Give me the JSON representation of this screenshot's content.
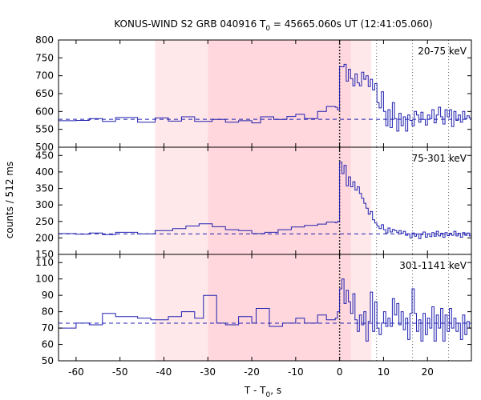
{
  "chart_data": {
    "type": "line",
    "title": {
      "prefix": "KONUS-WIND S2 GRB 040916 T",
      "sub": "0",
      "suffix": " = 45665.060s UT (12:41:05.060)"
    },
    "xlabel": {
      "prefix": "T - T",
      "sub": "0",
      "suffix": ", s"
    },
    "ylabel": "counts / 512 ms",
    "xlim": [
      -64,
      30
    ],
    "xticks": [
      -60,
      -50,
      -40,
      -30,
      -20,
      -10,
      0,
      10,
      20
    ],
    "shaded_regions": [
      {
        "x0": -42,
        "x1": -30,
        "color": "#ffe8ea"
      },
      {
        "x0": -30,
        "x1": 2.6,
        "color": "#ffd7dc"
      },
      {
        "x0": 2.6,
        "x1": 7.2,
        "color": "#ffe8ea"
      }
    ],
    "vlines": [
      {
        "x": 0,
        "style": "dotted-bold"
      },
      {
        "x": 8.4,
        "style": "dotted"
      },
      {
        "x": 16.6,
        "style": "dotted"
      },
      {
        "x": 24.8,
        "style": "dotted"
      }
    ],
    "line_color": "#2020b0",
    "panels": [
      {
        "label": "20-75 keV",
        "ylim": [
          500,
          800
        ],
        "yticks": [
          500,
          550,
          600,
          650,
          700,
          750,
          800
        ],
        "background": 578,
        "steps": [
          [
            -64,
            574
          ],
          [
            -60,
            575
          ],
          [
            -57,
            580
          ],
          [
            -54,
            572
          ],
          [
            -51,
            583
          ],
          [
            -46,
            570
          ],
          [
            -42,
            582
          ],
          [
            -39,
            573
          ],
          [
            -36,
            585
          ],
          [
            -33,
            572
          ],
          [
            -29,
            578
          ],
          [
            -26,
            570
          ],
          [
            -23,
            574
          ],
          [
            -20,
            568
          ],
          [
            -18,
            585
          ],
          [
            -15,
            578
          ],
          [
            -12,
            586
          ],
          [
            -10,
            592
          ],
          [
            -8,
            580
          ],
          [
            -5,
            600
          ],
          [
            -3,
            614
          ],
          [
            -1,
            612
          ],
          [
            -0.5,
            605
          ],
          [
            0,
            725
          ],
          [
            1,
            732
          ],
          [
            1.5,
            685
          ],
          [
            2,
            718
          ],
          [
            2.5,
            692
          ],
          [
            3,
            672
          ],
          [
            3.5,
            705
          ],
          [
            4,
            680
          ],
          [
            4.5,
            672
          ],
          [
            5,
            710
          ],
          [
            5.5,
            690
          ],
          [
            6,
            700
          ],
          [
            6.5,
            670
          ],
          [
            7,
            690
          ],
          [
            7.5,
            660
          ],
          [
            8,
            678
          ],
          [
            8.5,
            625
          ],
          [
            9,
            610
          ],
          [
            9.5,
            655
          ],
          [
            10,
            600
          ],
          [
            10.5,
            560
          ],
          [
            11,
            605
          ],
          [
            11.5,
            555
          ],
          [
            12,
            625
          ],
          [
            12.5,
            580
          ],
          [
            13,
            545
          ],
          [
            13.5,
            595
          ],
          [
            14,
            560
          ],
          [
            14.5,
            585
          ],
          [
            15,
            545
          ],
          [
            15.5,
            590
          ],
          [
            16,
            575
          ],
          [
            16.5,
            560
          ],
          [
            17,
            600
          ],
          [
            17.5,
            590
          ],
          [
            18,
            570
          ],
          [
            18.5,
            598
          ],
          [
            19,
            578
          ],
          [
            19.5,
            562
          ],
          [
            20,
            590
          ],
          [
            20.5,
            580
          ],
          [
            21,
            605
          ],
          [
            21.5,
            568
          ],
          [
            22,
            590
          ],
          [
            22.5,
            612
          ],
          [
            23,
            585
          ],
          [
            23.5,
            565
          ],
          [
            24,
            605
          ],
          [
            24.5,
            585
          ],
          [
            25,
            605
          ],
          [
            25.5,
            558
          ],
          [
            26,
            600
          ],
          [
            26.5,
            575
          ],
          [
            27,
            590
          ],
          [
            27.5,
            570
          ],
          [
            28,
            600
          ],
          [
            28.5,
            580
          ],
          [
            29,
            588
          ],
          [
            29.5,
            582
          ]
        ]
      },
      {
        "label": "75-301 keV",
        "ylim": [
          150,
          475
        ],
        "yticks": [
          150,
          200,
          250,
          300,
          350,
          400,
          450
        ],
        "background": 212,
        "steps": [
          [
            -64,
            213
          ],
          [
            -60,
            211
          ],
          [
            -57,
            215
          ],
          [
            -54,
            210
          ],
          [
            -51,
            217
          ],
          [
            -46,
            212
          ],
          [
            -42,
            222
          ],
          [
            -38,
            228
          ],
          [
            -35,
            236
          ],
          [
            -32,
            243
          ],
          [
            -29,
            234
          ],
          [
            -26,
            225
          ],
          [
            -23,
            222
          ],
          [
            -20,
            213
          ],
          [
            -17,
            217
          ],
          [
            -14,
            225
          ],
          [
            -11,
            233
          ],
          [
            -8,
            238
          ],
          [
            -5,
            242
          ],
          [
            -3,
            248
          ],
          [
            -1,
            246
          ],
          [
            -0.5,
            250
          ],
          [
            0,
            430
          ],
          [
            0.5,
            395
          ],
          [
            1,
            420
          ],
          [
            1.5,
            358
          ],
          [
            2,
            385
          ],
          [
            2.5,
            355
          ],
          [
            3,
            370
          ],
          [
            3.5,
            345
          ],
          [
            4,
            355
          ],
          [
            4.5,
            335
          ],
          [
            5,
            320
          ],
          [
            5.5,
            305
          ],
          [
            6,
            290
          ],
          [
            6.5,
            272
          ],
          [
            7,
            280
          ],
          [
            7.5,
            255
          ],
          [
            8,
            245
          ],
          [
            8.5,
            236
          ],
          [
            9,
            228
          ],
          [
            9.5,
            240
          ],
          [
            10,
            225
          ],
          [
            10.5,
            215
          ],
          [
            11,
            230
          ],
          [
            11.5,
            218
          ],
          [
            12,
            226
          ],
          [
            12.5,
            222
          ],
          [
            13,
            216
          ],
          [
            13.5,
            222
          ],
          [
            14,
            214
          ],
          [
            14.5,
            220
          ],
          [
            15,
            208
          ],
          [
            15.5,
            212
          ],
          [
            16,
            200
          ],
          [
            16.5,
            215
          ],
          [
            17,
            205
          ],
          [
            17.5,
            212
          ],
          [
            18,
            198
          ],
          [
            18.5,
            210
          ],
          [
            19,
            218
          ],
          [
            19.5,
            202
          ],
          [
            20,
            212
          ],
          [
            20.5,
            204
          ],
          [
            21,
            216
          ],
          [
            21.5,
            205
          ],
          [
            22,
            220
          ],
          [
            22.5,
            206
          ],
          [
            23,
            214
          ],
          [
            23.5,
            202
          ],
          [
            24,
            216
          ],
          [
            24.5,
            207
          ],
          [
            25,
            214
          ],
          [
            25.5,
            208
          ],
          [
            26,
            220
          ],
          [
            26.5,
            206
          ],
          [
            27,
            214
          ],
          [
            27.5,
            202
          ],
          [
            28,
            216
          ],
          [
            28.5,
            208
          ],
          [
            29,
            215
          ],
          [
            29.5,
            206
          ]
        ]
      },
      {
        "label": "301-1141 keV",
        "ylim": [
          50,
          115
        ],
        "yticks": [
          50,
          60,
          70,
          80,
          90,
          100,
          110
        ],
        "background": 73,
        "steps": [
          [
            -64,
            70
          ],
          [
            -60,
            73
          ],
          [
            -57,
            72
          ],
          [
            -54,
            79
          ],
          [
            -51,
            77
          ],
          [
            -46,
            76
          ],
          [
            -43,
            75
          ],
          [
            -39,
            77
          ],
          [
            -36,
            80
          ],
          [
            -33,
            76
          ],
          [
            -31,
            90
          ],
          [
            -28,
            73
          ],
          [
            -26,
            72
          ],
          [
            -23,
            77
          ],
          [
            -20,
            73
          ],
          [
            -19,
            82
          ],
          [
            -16,
            71
          ],
          [
            -13,
            73
          ],
          [
            -10,
            76
          ],
          [
            -8,
            73
          ],
          [
            -5,
            78
          ],
          [
            -3,
            75
          ],
          [
            -1,
            76
          ],
          [
            -0.5,
            80
          ],
          [
            0,
            94
          ],
          [
            0.5,
            100
          ],
          [
            1,
            85
          ],
          [
            1.5,
            93
          ],
          [
            2,
            86
          ],
          [
            2.5,
            79
          ],
          [
            3,
            91
          ],
          [
            3.5,
            75
          ],
          [
            4,
            68
          ],
          [
            4.5,
            78
          ],
          [
            5,
            72
          ],
          [
            5.5,
            80
          ],
          [
            6,
            62
          ],
          [
            6.5,
            74
          ],
          [
            7,
            92
          ],
          [
            7.5,
            68
          ],
          [
            8,
            86
          ],
          [
            8.5,
            70
          ],
          [
            9,
            66
          ],
          [
            9.5,
            73
          ],
          [
            10,
            80
          ],
          [
            10.5,
            71
          ],
          [
            11,
            76
          ],
          [
            11.5,
            71
          ],
          [
            12,
            88
          ],
          [
            12.5,
            78
          ],
          [
            13,
            85
          ],
          [
            13.5,
            72
          ],
          [
            14,
            80
          ],
          [
            14.5,
            69
          ],
          [
            15,
            76
          ],
          [
            15.5,
            63
          ],
          [
            16,
            79
          ],
          [
            16.5,
            94
          ],
          [
            17,
            79
          ],
          [
            17.5,
            68
          ],
          [
            18,
            75
          ],
          [
            18.5,
            62
          ],
          [
            19,
            79
          ],
          [
            19.5,
            66
          ],
          [
            20,
            76
          ],
          [
            20.5,
            70
          ],
          [
            21,
            83
          ],
          [
            21.5,
            62
          ],
          [
            22,
            78
          ],
          [
            22.5,
            70
          ],
          [
            23,
            82
          ],
          [
            23.5,
            62
          ],
          [
            24,
            78
          ],
          [
            24.5,
            68
          ],
          [
            25,
            82
          ],
          [
            25.5,
            70
          ],
          [
            26,
            76
          ],
          [
            26.5,
            68
          ],
          [
            27,
            73
          ],
          [
            27.5,
            63
          ],
          [
            28,
            78
          ],
          [
            28.5,
            66
          ],
          [
            29,
            74
          ],
          [
            29.5,
            70
          ]
        ]
      }
    ]
  }
}
